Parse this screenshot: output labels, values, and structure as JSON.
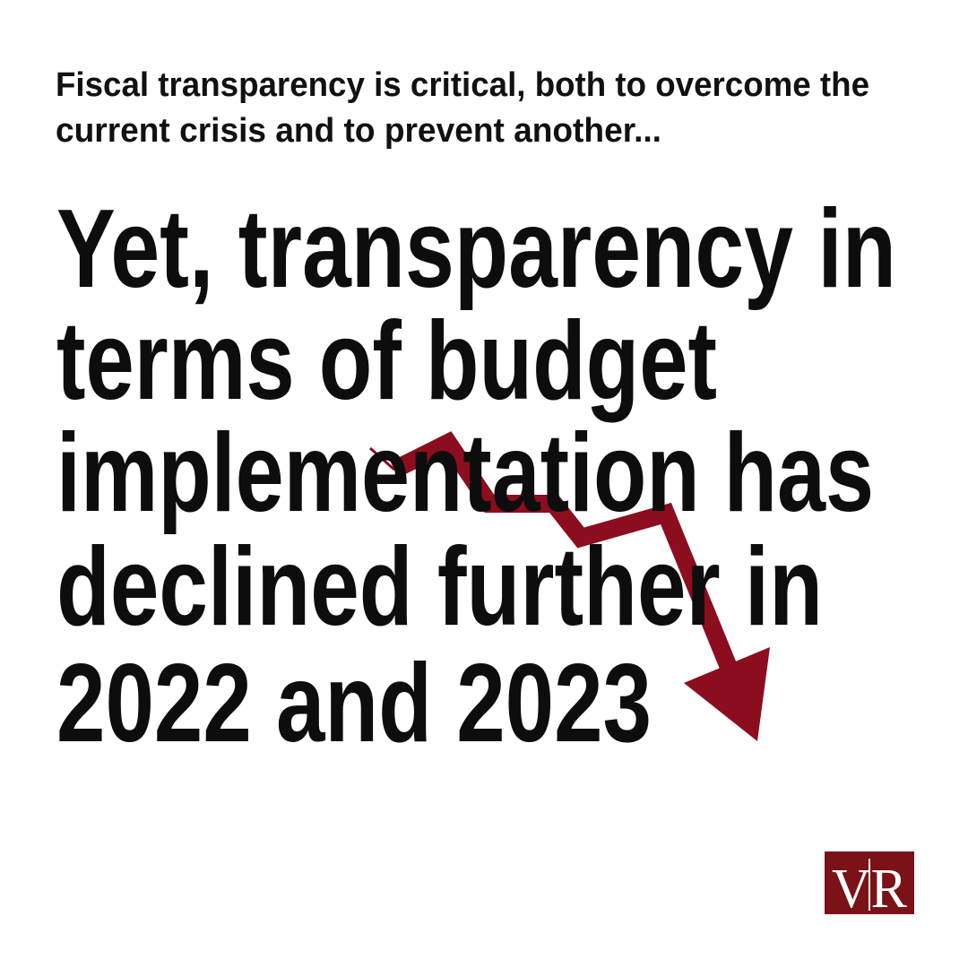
{
  "intro": {
    "lines": [
      "Fiscal transparency is critical, both to overcome the",
      "current crisis and to prevent another..."
    ]
  },
  "headline": {
    "lines": [
      "Yet, transparency in",
      "terms of budget",
      "implementation has",
      "declined further in",
      "2022 and 2023"
    ]
  },
  "logo": {
    "text": "VR"
  }
}
